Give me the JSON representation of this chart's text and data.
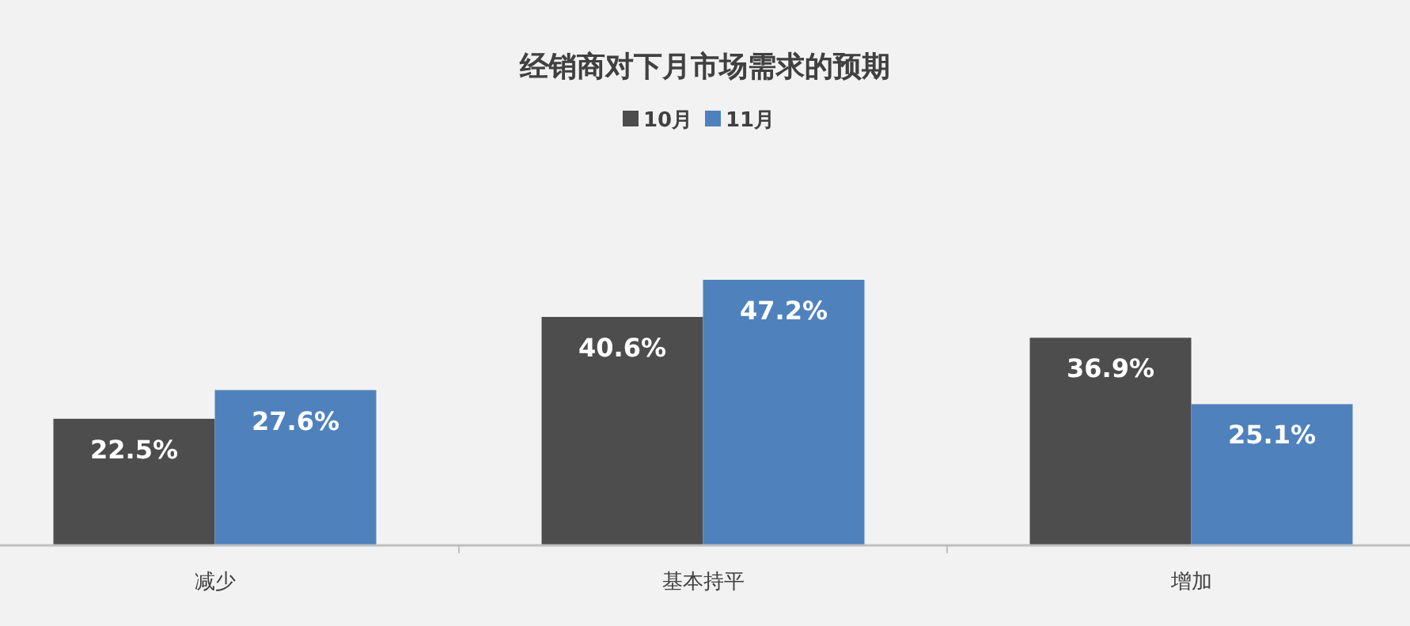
{
  "chart_data": {
    "type": "bar",
    "title": "经销商对下月市场需求的预期",
    "categories": [
      "减少",
      "基本持平",
      "增加"
    ],
    "series": [
      {
        "name": "10月",
        "color": "#4d4d4d",
        "values": [
          22.5,
          40.6,
          36.9
        ],
        "value_labels": [
          "22.5%",
          "40.6%",
          "36.9%"
        ]
      },
      {
        "name": "11月",
        "color": "#4f81bd",
        "values": [
          27.6,
          47.2,
          25.1
        ],
        "value_labels": [
          "27.6%",
          "47.2%",
          "25.1%"
        ]
      }
    ],
    "legend": "top"
  }
}
